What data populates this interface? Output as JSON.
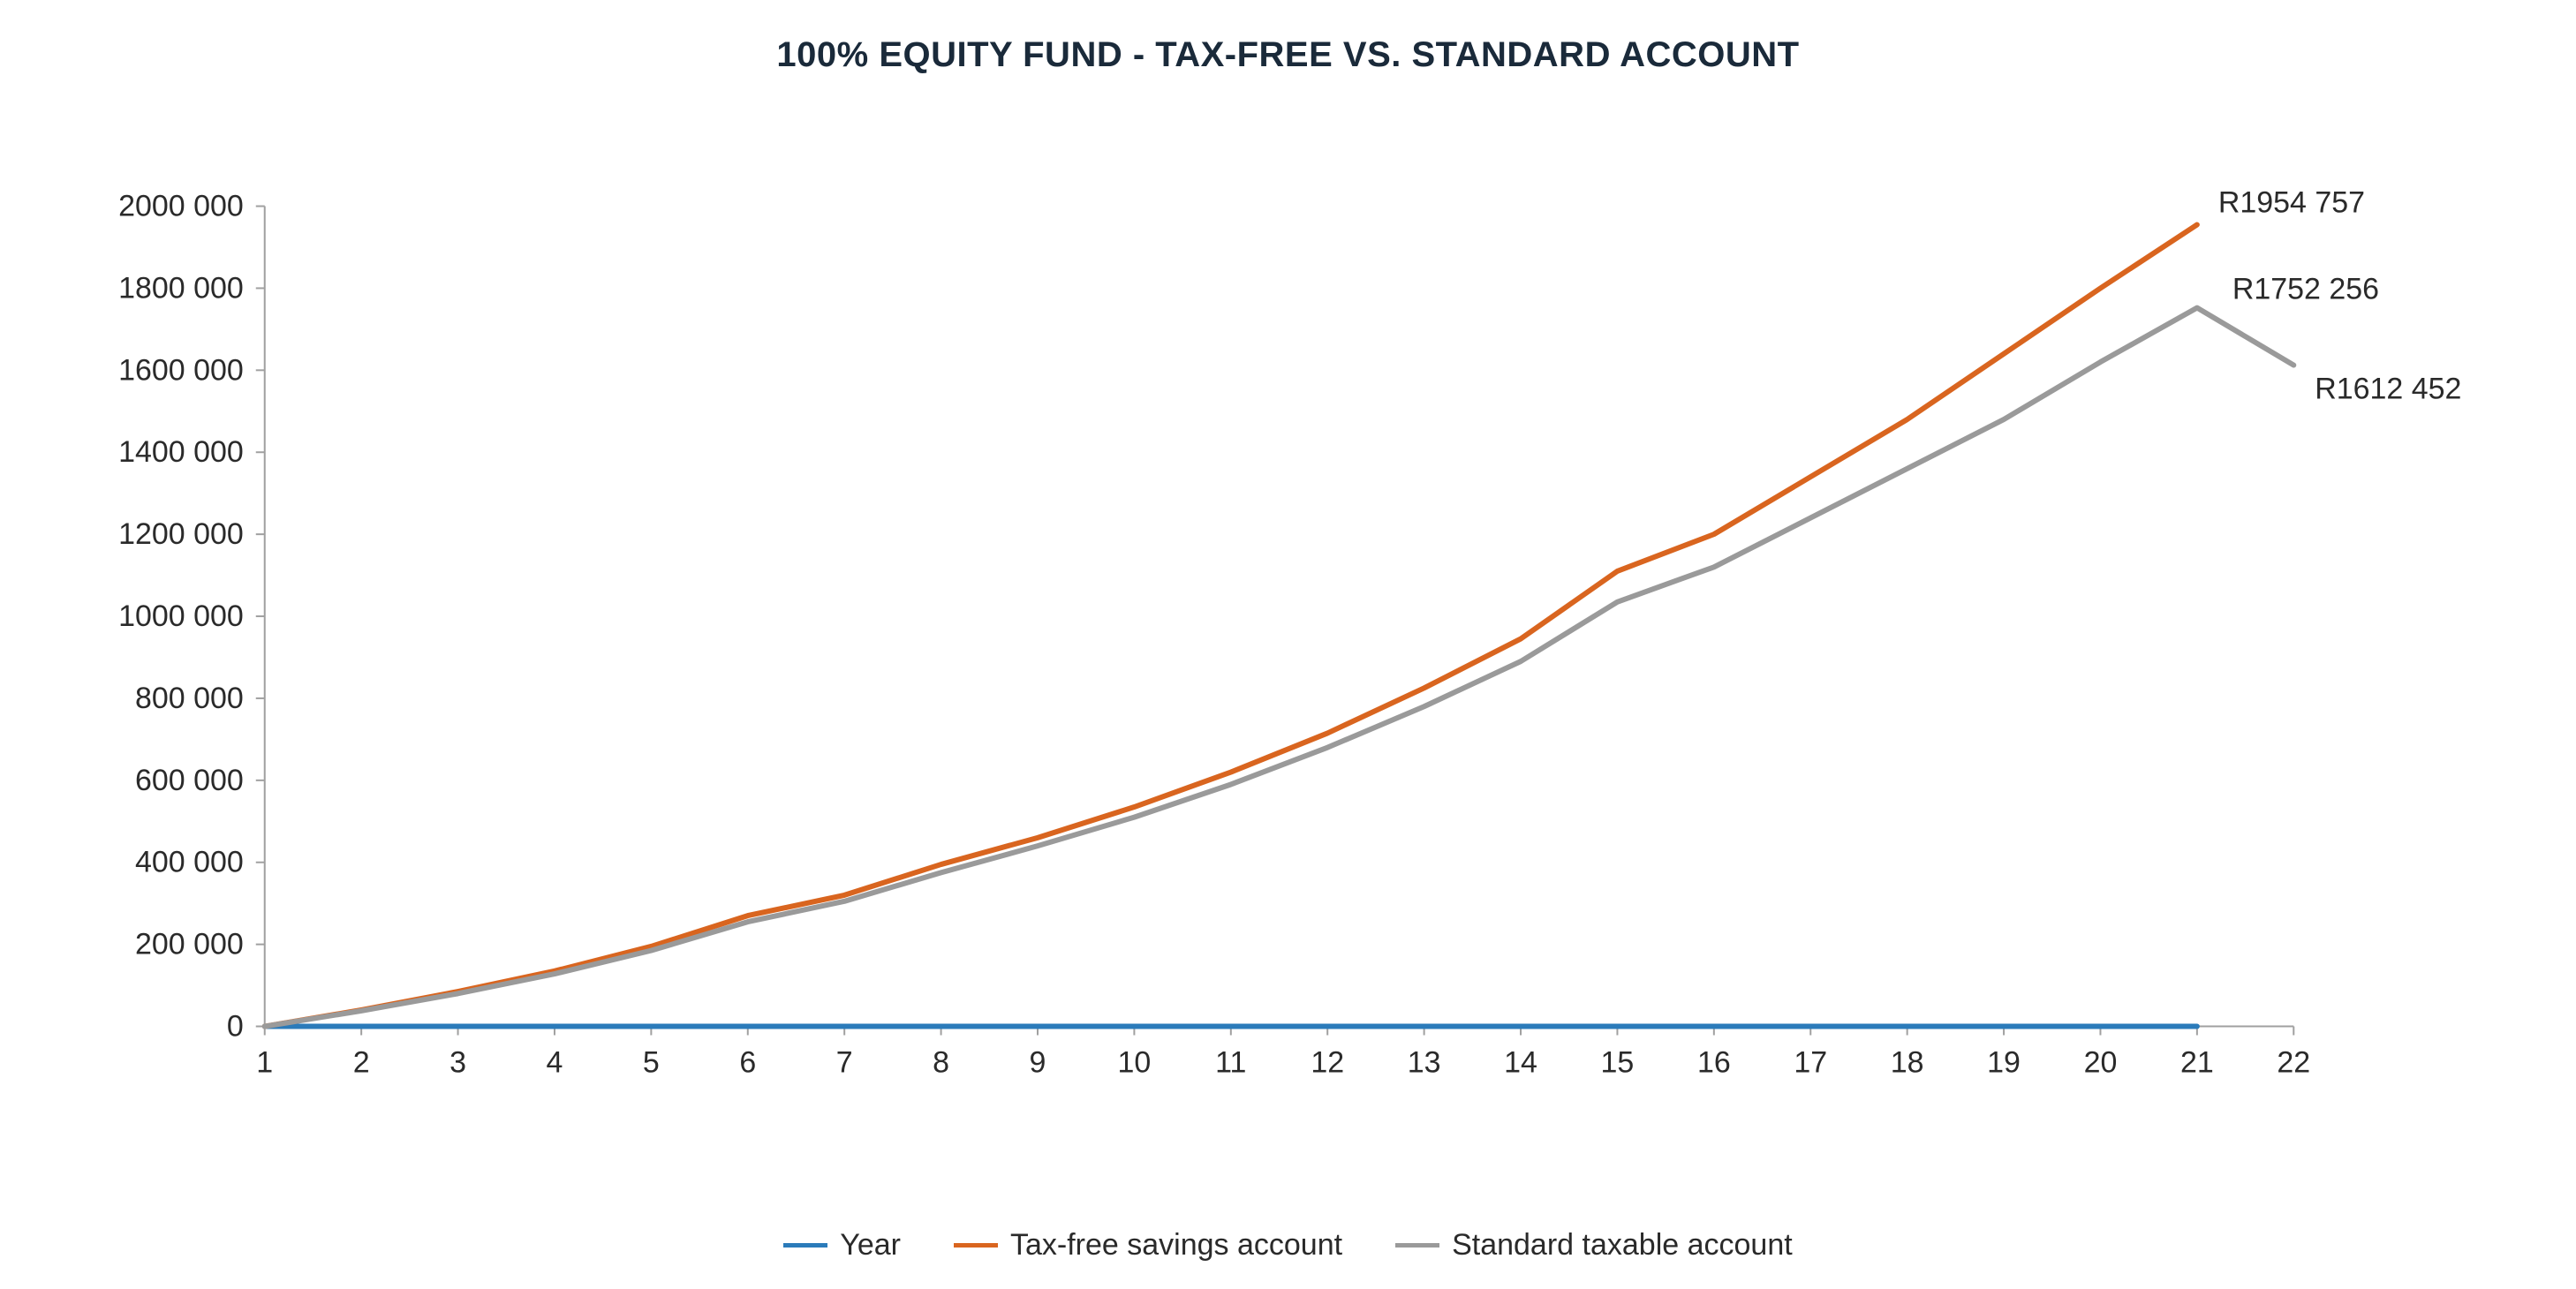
{
  "chart": {
    "type": "line",
    "title": "100% EQUITY FUND - TAX-FREE VS. STANDARD ACCOUNT",
    "title_fontsize": 40,
    "title_color": "#1a2a3a",
    "background_color": "#ffffff",
    "axis_label_fontsize": 34,
    "axis_label_color": "#2a2a2a",
    "axis_line_color": "#a0a0a0",
    "axis_line_width": 2,
    "tick_length": 10,
    "x": {
      "min": 1,
      "max": 22,
      "ticks": [
        1,
        2,
        3,
        4,
        5,
        6,
        7,
        8,
        9,
        10,
        11,
        12,
        13,
        14,
        15,
        16,
        17,
        18,
        19,
        20,
        21,
        22
      ]
    },
    "y": {
      "min": 0,
      "max": 2000000,
      "tick_step": 200000,
      "tick_labels": [
        "0",
        "200 000",
        "400 000",
        "600 000",
        "800 000",
        "1000 000",
        "1200 000",
        "1400 000",
        "1600 000",
        "1800 000",
        "2000 000"
      ]
    },
    "series": [
      {
        "id": "year",
        "label": "Year",
        "color": "#2b7bba",
        "line_width": 6,
        "x": [
          1,
          2,
          3,
          4,
          5,
          6,
          7,
          8,
          9,
          10,
          11,
          12,
          13,
          14,
          15,
          16,
          17,
          18,
          19,
          20,
          21
        ],
        "y": [
          0,
          0,
          0,
          0,
          0,
          0,
          0,
          0,
          0,
          0,
          0,
          0,
          0,
          0,
          0,
          0,
          0,
          0,
          0,
          0,
          0
        ]
      },
      {
        "id": "taxfree",
        "label": "Tax-free savings account",
        "color": "#d9651f",
        "line_width": 6,
        "x": [
          1,
          2,
          3,
          4,
          5,
          6,
          7,
          8,
          9,
          10,
          11,
          12,
          13,
          14,
          15,
          16,
          17,
          18,
          19,
          20,
          21
        ],
        "y": [
          0,
          40000,
          85000,
          135000,
          195000,
          270000,
          320000,
          395000,
          460000,
          535000,
          620000,
          715000,
          825000,
          945000,
          1110000,
          1200000,
          1340000,
          1480000,
          1640000,
          1800000,
          1954757
        ],
        "end_label": "R1954 757",
        "end_label_offset_y": -14
      },
      {
        "id": "standard",
        "label": "Standard taxable account",
        "color": "#9a9a9a",
        "line_width": 6,
        "x": [
          1,
          2,
          3,
          4,
          5,
          6,
          7,
          8,
          9,
          10,
          11,
          12,
          13,
          14,
          15,
          16,
          17,
          18,
          19,
          20,
          21,
          22
        ],
        "y": [
          0,
          38000,
          80000,
          128000,
          185000,
          255000,
          305000,
          375000,
          440000,
          510000,
          590000,
          680000,
          780000,
          890000,
          1035000,
          1120000,
          1240000,
          1360000,
          1480000,
          1620000,
          1752256,
          1612452
        ],
        "mid_label": {
          "x": 21,
          "y": 1752256,
          "text": "R1752 256",
          "dx": 40,
          "dy": -10
        },
        "end_label": "R1612 452",
        "end_label_offset_y": 38
      }
    ],
    "legend_fontsize": 34,
    "data_label_fontsize": 34
  }
}
